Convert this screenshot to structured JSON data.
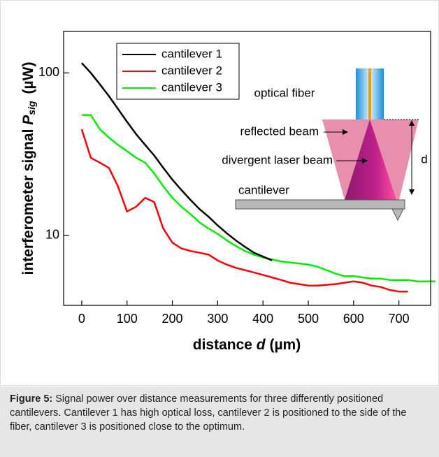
{
  "chart_data": {
    "type": "line",
    "ylabel": {
      "text": "interferometer signal",
      "symbol": "P",
      "subscript": "sig",
      "unit": "(µW)"
    },
    "xlabel": {
      "text": "distance",
      "symbol": "d",
      "unit": "(µm)"
    },
    "x": [
      0,
      20,
      40,
      60,
      80,
      100,
      120,
      140,
      160,
      180,
      200,
      220,
      240,
      260,
      280,
      300,
      320,
      340,
      360,
      380,
      400,
      420,
      440,
      460,
      480,
      500,
      520,
      540,
      560,
      580,
      600,
      620,
      640,
      660,
      680,
      700,
      720,
      740,
      760,
      780
    ],
    "series": [
      {
        "name": "cantilever 1",
        "color": "#000000",
        "values": [
          115,
          100,
          85,
          72,
          60,
          50,
          42,
          36,
          31,
          26,
          22,
          19,
          16.5,
          14.5,
          13,
          11.5,
          10.3,
          9.3,
          8.5,
          7.8,
          7.4,
          7.0,
          null,
          null,
          null,
          null,
          null,
          null,
          null,
          null,
          null,
          null,
          null,
          null,
          null,
          null,
          null,
          null,
          null,
          null
        ]
      },
      {
        "name": "cantilever 2",
        "color": "#ff0000",
        "values": [
          45,
          30,
          28,
          26,
          20,
          14,
          15,
          17,
          16,
          11,
          9,
          8.3,
          8.0,
          7.8,
          7.6,
          7.0,
          6.6,
          6.3,
          6.1,
          5.9,
          5.7,
          5.5,
          5.3,
          5.1,
          5.0,
          4.9,
          4.9,
          4.95,
          5.0,
          5.1,
          5.2,
          5.1,
          4.9,
          4.8,
          4.6,
          4.5,
          4.5,
          null,
          null,
          null
        ]
      },
      {
        "name": "cantilever 3",
        "color": "#00ee00",
        "values": [
          55,
          55,
          45,
          40,
          36,
          33,
          30,
          28,
          24,
          20,
          17,
          15,
          13.5,
          12,
          11,
          10.2,
          9.3,
          8.6,
          8.0,
          7.6,
          7.3,
          7.1,
          6.9,
          6.8,
          6.7,
          6.6,
          6.4,
          6.1,
          5.8,
          5.6,
          5.6,
          5.5,
          5.4,
          5.4,
          5.3,
          5.3,
          5.3,
          5.2,
          5.2,
          5.2
        ]
      }
    ],
    "xlim": [
      -40,
      770
    ],
    "xticks": [
      0,
      100,
      200,
      300,
      400,
      500,
      600,
      700
    ],
    "ylim": [
      3.7,
      180
    ],
    "yticks": [
      10,
      100
    ],
    "log_y": true,
    "annotations": [
      "optical fiber",
      "reflected beam",
      "divergent laser beam",
      "cantilever",
      "d"
    ]
  },
  "caption": {
    "label": "Figure 5:",
    "text": "Signal power over distance measurements for three differently positioned cantilevers. Cantilever 1 has high optical loss, cantilever 2 is positioned to the side of the fiber, cantilever 3 is positioned close to the optimum."
  }
}
